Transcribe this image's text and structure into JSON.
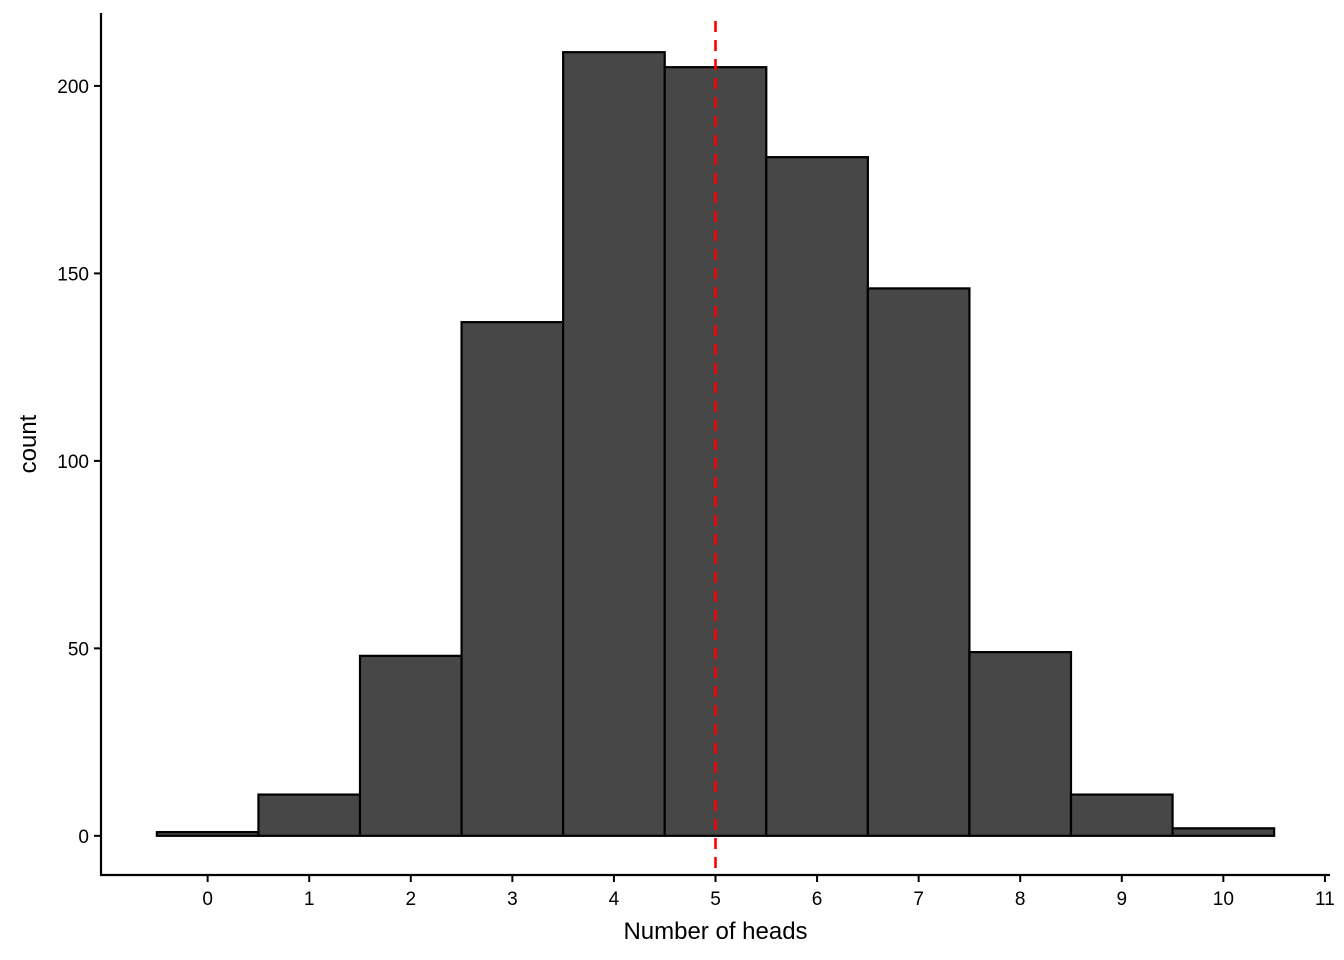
{
  "chart_data": {
    "type": "bar",
    "subtype": "histogram",
    "title": "",
    "xlabel": "Number of heads",
    "ylabel": "count",
    "x_bin_centers": [
      0,
      1,
      2,
      3,
      4,
      5,
      6,
      7,
      8,
      9,
      10
    ],
    "bin_width": 1,
    "values": [
      1,
      11,
      48,
      137,
      209,
      205,
      181,
      146,
      49,
      11,
      2
    ],
    "xlim": [
      -1.05,
      11.05
    ],
    "ylim": [
      -10.45,
      219.45
    ],
    "x_ticks": [
      "0",
      "1",
      "2",
      "3",
      "4",
      "5",
      "6",
      "7",
      "8",
      "9",
      "10",
      "11"
    ],
    "y_ticks": [
      "0",
      "50",
      "100",
      "150",
      "200"
    ],
    "reference_line": {
      "axis": "x",
      "value": 5,
      "style": "dashed"
    },
    "bar_fill": "#474747",
    "bar_stroke": "#000000",
    "reference_line_color": "#ff0000",
    "grid": false,
    "legend": "none"
  }
}
